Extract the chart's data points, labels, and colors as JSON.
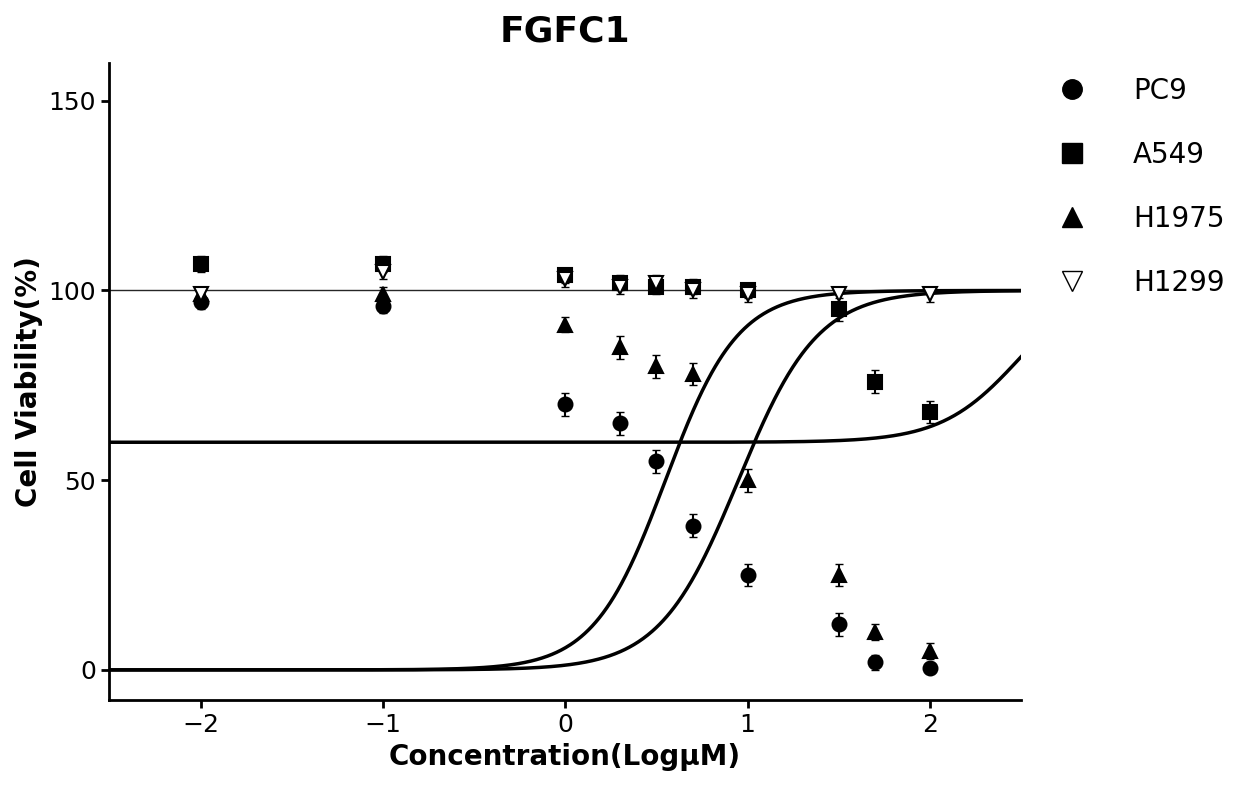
{
  "title": "FGFC1",
  "xlabel": "Concentration(LogμM)",
  "ylabel": "Cell Viability(%)",
  "title_fontsize": 26,
  "label_fontsize": 20,
  "tick_fontsize": 18,
  "legend_fontsize": 20,
  "xlim": [
    -2.5,
    2.5
  ],
  "ylim": [
    -8,
    160
  ],
  "yticks": [
    0,
    50,
    100,
    150
  ],
  "xticks": [
    -2,
    -1,
    0,
    1,
    2
  ],
  "background_color": "#ffffff",
  "line_color": "#000000",
  "series": {
    "PC9": {
      "x": [
        -2.0,
        -1.0,
        0.0,
        0.3,
        0.5,
        0.7,
        1.0,
        1.5,
        1.7,
        2.0
      ],
      "y": [
        97,
        96,
        70,
        65,
        55,
        38,
        25,
        12,
        2,
        0.5
      ],
      "yerr": [
        2,
        2,
        3,
        3,
        3,
        3,
        3,
        3,
        2,
        1
      ],
      "marker": "o",
      "fillstyle": "full",
      "color": "#000000",
      "IC50_log": 0.55,
      "hill": 2.2,
      "top": 100,
      "bottom": 0
    },
    "A549": {
      "x": [
        -2.0,
        -1.0,
        0.0,
        0.3,
        0.5,
        0.7,
        1.0,
        1.5,
        1.7,
        2.0
      ],
      "y": [
        107,
        107,
        104,
        102,
        101,
        101,
        100,
        95,
        76,
        68
      ],
      "yerr": [
        2,
        2,
        2,
        2,
        2,
        2,
        2,
        3,
        3,
        3
      ],
      "marker": "s",
      "fillstyle": "full",
      "color": "#000000",
      "IC50_log": 2.5,
      "hill": 2.0,
      "top": 105,
      "bottom": 60
    },
    "H1975": {
      "x": [
        -2.0,
        -1.0,
        0.0,
        0.3,
        0.5,
        0.7,
        1.0,
        1.5,
        1.7,
        2.0
      ],
      "y": [
        99,
        99,
        91,
        85,
        80,
        78,
        50,
        25,
        10,
        5
      ],
      "yerr": [
        2,
        2,
        2,
        3,
        3,
        3,
        3,
        3,
        2,
        2
      ],
      "marker": "^",
      "fillstyle": "full",
      "color": "#000000",
      "IC50_log": 0.95,
      "hill": 2.0,
      "top": 100,
      "bottom": 0
    },
    "H1299": {
      "x": [
        -2.0,
        -1.0,
        0.0,
        0.3,
        0.5,
        0.7,
        1.0,
        1.5,
        2.0
      ],
      "y": [
        99,
        105,
        103,
        101,
        102,
        100,
        99,
        99,
        99
      ],
      "yerr": [
        2,
        2,
        2,
        2,
        2,
        2,
        2,
        2,
        2
      ],
      "marker": "v",
      "fillstyle": "none",
      "color": "#000000",
      "IC50_log": null,
      "hill": null,
      "top": null,
      "bottom": null
    }
  }
}
